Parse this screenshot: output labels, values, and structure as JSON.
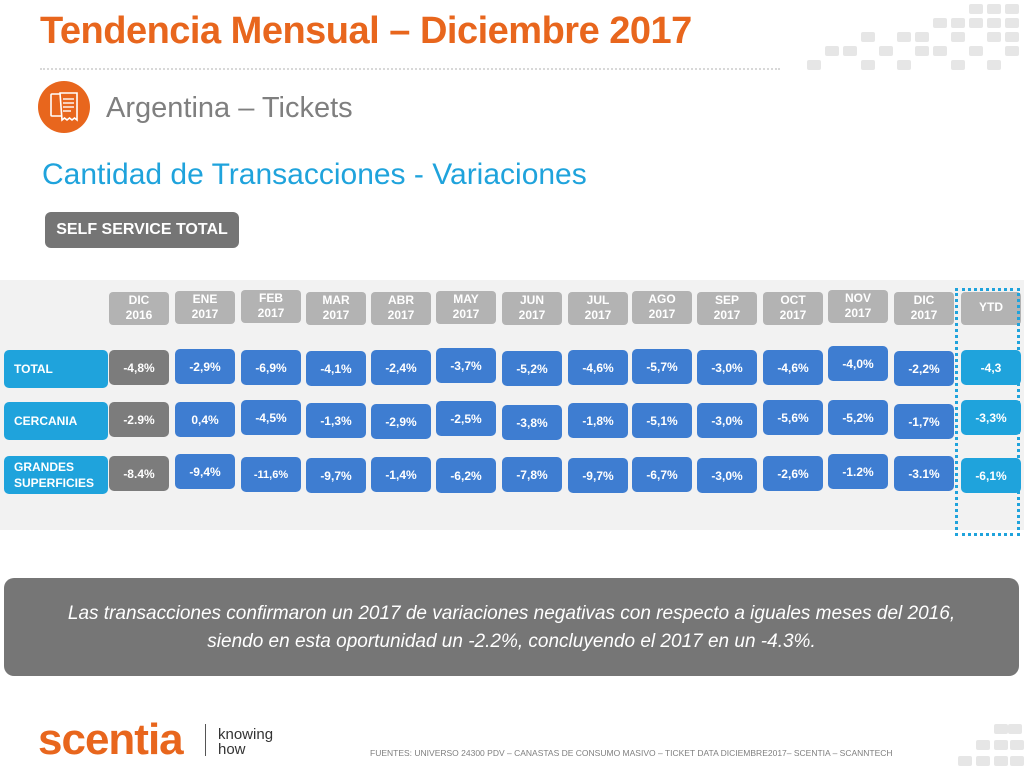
{
  "title": "Tendencia Mensual – Diciembre 2017",
  "section_icon": "receipt-icon",
  "subtitle": "Argentina – Tickets",
  "heading": "Cantidad de Transacciones - Variaciones",
  "segment_label": "SELF SERVICE TOTAL",
  "table": {
    "columns": [
      {
        "month": "DIC",
        "year": "2016"
      },
      {
        "month": "ENE",
        "year": "2017"
      },
      {
        "month": "FEB",
        "year": "2017"
      },
      {
        "month": "MAR",
        "year": "2017"
      },
      {
        "month": "ABR",
        "year": "2017"
      },
      {
        "month": "MAY",
        "year": "2017"
      },
      {
        "month": "JUN",
        "year": "2017"
      },
      {
        "month": "JUL",
        "year": "2017"
      },
      {
        "month": "AGO",
        "year": "2017"
      },
      {
        "month": "SEP",
        "year": "2017"
      },
      {
        "month": "OCT",
        "year": "2017"
      },
      {
        "month": "NOV",
        "year": "2017"
      },
      {
        "month": "DIC",
        "year": "2017"
      }
    ],
    "ytd_label": "YTD",
    "rows": [
      {
        "label": "TOTAL",
        "values": [
          "-4,8%",
          "-2,9%",
          "-6,9%",
          "-4,1%",
          "-2,4%",
          "-3,7%",
          "-5,2%",
          "-4,6%",
          "-5,7%",
          "-3,0%",
          "-4,6%",
          "-4,0%",
          "-2,2%"
        ],
        "ytd": "-4,3"
      },
      {
        "label": "CERCANIA",
        "values": [
          "-2.9%",
          "0,4%",
          "-4,5%",
          "-1,3%",
          "-2,9%",
          "-2,5%",
          "-3,8%",
          "-1,8%",
          "-5,1%",
          "-3,0%",
          "-5,6%",
          "-5,2%",
          "-1,7%"
        ],
        "ytd": "-3,3%"
      },
      {
        "label": "GRANDES SUPERFICIES",
        "values": [
          "-8.4%",
          "-9,4%",
          "-11,6%",
          "-9,7%",
          "-1,4%",
          "-6,2%",
          "-7,8%",
          "-9,7%",
          "-6,7%",
          "-3,0%",
          "-2,6%",
          "-1.2%",
          "-3.1%"
        ],
        "ytd": "-6,1%"
      }
    ]
  },
  "summary": {
    "line1": "Las transacciones confirmaron un 2017 de variaciones negativas con respecto a iguales meses del 2016,",
    "line2": "siendo en esta oportunidad un -2.2%, concluyendo el 2017 en un -4.3%."
  },
  "logo": {
    "name": "scentia",
    "tagline_1": "knowing",
    "tagline_2": "how"
  },
  "footer": "FUENTES: UNIVERSO 24300 PDV – CANASTAS DE CONSUMO MASIVO – TICKET DATA DICIEMBRE2017– SCENTIA – SCANNTECH",
  "colors": {
    "brand_orange": "#e8661d",
    "accent_blue": "#1fa3dc",
    "cell_blue": "#3e7dd1",
    "cell_gray": "#7c7c7c",
    "header_gray": "#b3b3b3"
  }
}
